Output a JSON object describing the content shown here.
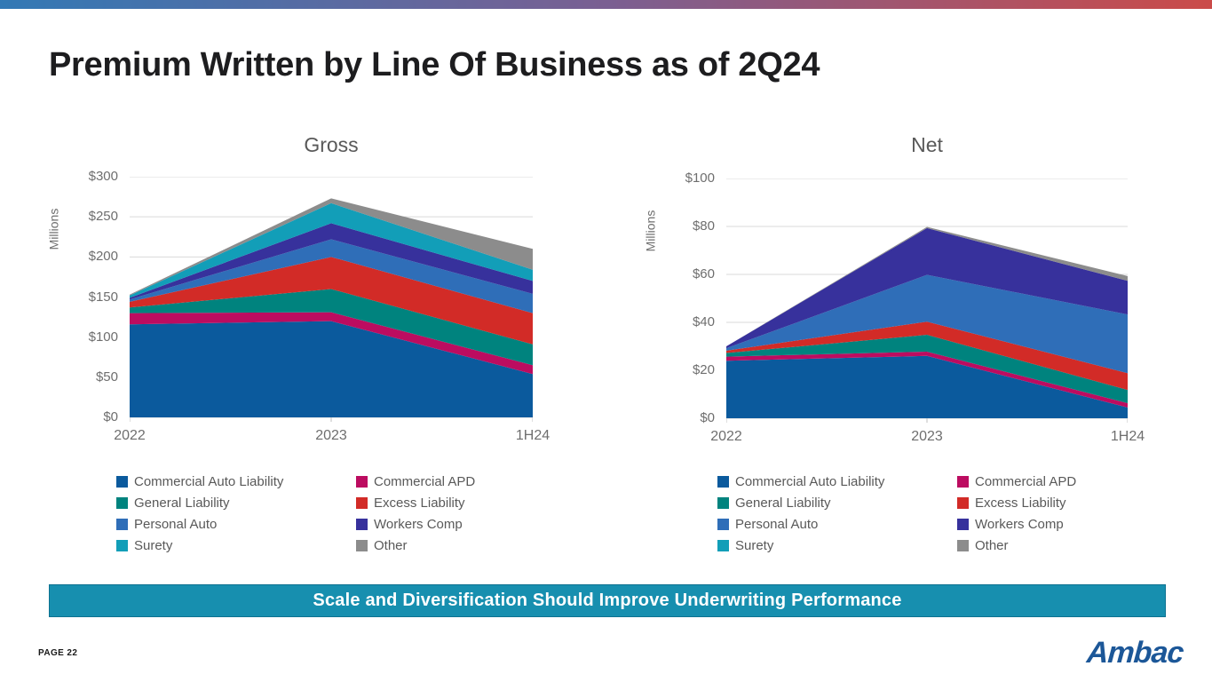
{
  "slide": {
    "title": "Premium Written by Line Of Business as of 2Q24",
    "banner": "Scale and Diversification Should Improve Underwriting Performance",
    "page_label": "PAGE 22",
    "logo_text": "Ambac"
  },
  "colors": {
    "banner_bg": "#178FAF",
    "banner_border": "#0D7291",
    "logo_blue": "#1C5798",
    "gridline": "#D9D9D9",
    "tick_mark": "#BFBFBF",
    "axis_text": "#6E6E6E",
    "legend_text": "#595959",
    "topbar_left": "#3279B5",
    "topbar_mid": "#7A5F92",
    "topbar_right": "#CB4B49"
  },
  "chart_data": [
    {
      "type": "area",
      "stacked": true,
      "title": "Gross",
      "ylabel": "Millions",
      "categories": [
        "2022",
        "2023",
        "1H24"
      ],
      "ylim": [
        0,
        300
      ],
      "ytick_step": 50,
      "yticks": [
        "$0",
        "$50",
        "$100",
        "$150",
        "$200",
        "$250",
        "$300"
      ],
      "grid": true,
      "legend_position": "bottom",
      "units": "USD millions",
      "series": [
        {
          "name": "Commercial Auto Liability",
          "color": "#0B5A9D",
          "values": [
            116,
            120,
            54
          ]
        },
        {
          "name": "Commercial APD",
          "color": "#BC0C60",
          "values": [
            14,
            11,
            11
          ]
        },
        {
          "name": "General Liability",
          "color": "#00837E",
          "values": [
            7,
            29,
            26
          ]
        },
        {
          "name": "Excess Liability",
          "color": "#D22B27",
          "values": [
            7,
            40,
            39
          ]
        },
        {
          "name": "Personal Auto",
          "color": "#2F6EB8",
          "values": [
            3,
            22,
            24
          ]
        },
        {
          "name": "Workers Comp",
          "color": "#37319C",
          "values": [
            2,
            20,
            16
          ]
        },
        {
          "name": "Surety",
          "color": "#129EB8",
          "values": [
            3,
            25,
            14
          ]
        },
        {
          "name": "Other",
          "color": "#8C8C8C",
          "values": [
            1,
            6,
            26
          ]
        }
      ]
    },
    {
      "type": "area",
      "stacked": true,
      "title": "Net",
      "ylabel": "Millions",
      "categories": [
        "2022",
        "2023",
        "1H24"
      ],
      "ylim": [
        0,
        100
      ],
      "ytick_step": 20,
      "yticks": [
        "$0",
        "$20",
        "$40",
        "$60",
        "$80",
        "$100"
      ],
      "grid": true,
      "legend_position": "bottom",
      "units": "USD millions",
      "series": [
        {
          "name": "Commercial Auto Liability",
          "color": "#0B5A9D",
          "values": [
            24,
            26,
            4.5
          ]
        },
        {
          "name": "Commercial APD",
          "color": "#BC0C60",
          "values": [
            1.7,
            1.8,
            1.8
          ]
        },
        {
          "name": "General Liability",
          "color": "#00837E",
          "values": [
            1.5,
            7,
            5.5
          ]
        },
        {
          "name": "Excess Liability",
          "color": "#D22B27",
          "values": [
            1,
            5.5,
            7
          ]
        },
        {
          "name": "Personal Auto",
          "color": "#2F6EB8",
          "values": [
            1,
            19.5,
            24.5
          ]
        },
        {
          "name": "Workers Comp",
          "color": "#37319C",
          "values": [
            0.8,
            19.5,
            14
          ]
        },
        {
          "name": "Surety",
          "color": "#129EB8",
          "values": [
            0,
            0,
            0
          ]
        },
        {
          "name": "Other",
          "color": "#8C8C8C",
          "values": [
            0,
            0.5,
            2
          ]
        }
      ]
    }
  ]
}
